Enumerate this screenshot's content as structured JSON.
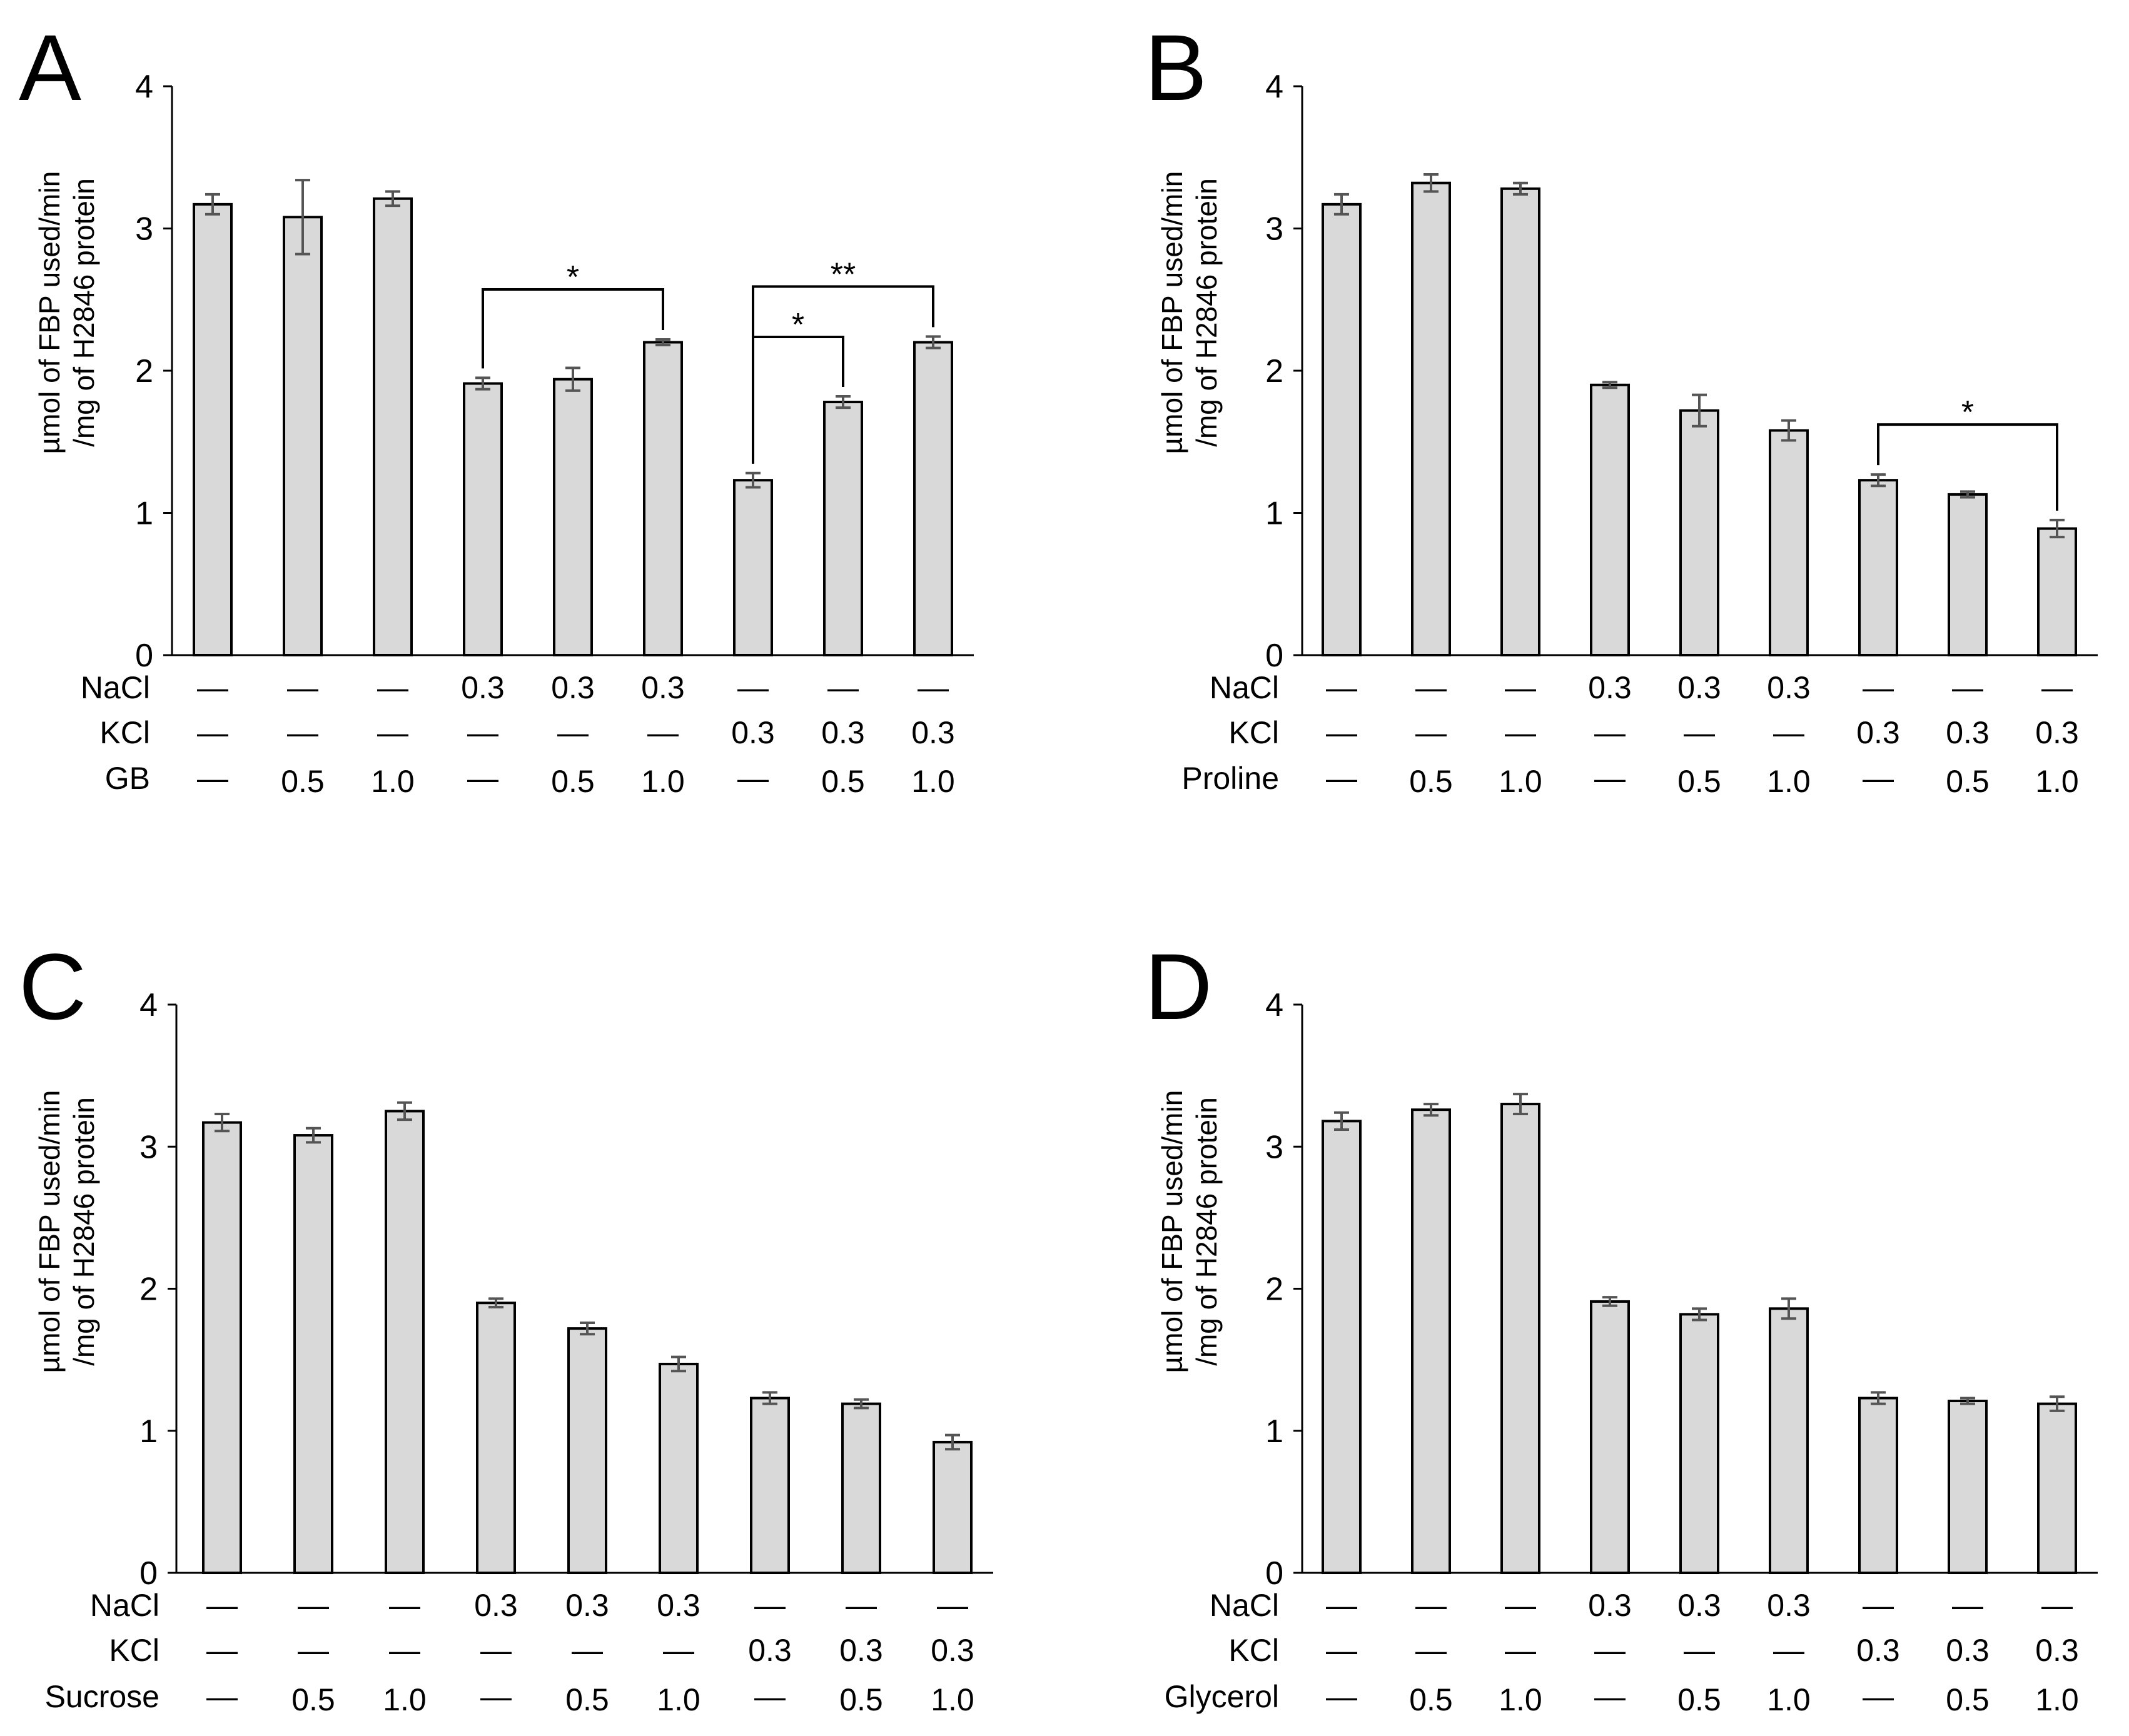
{
  "figure": {
    "panels": [
      {
        "letter": "A",
        "y_label_lines": [
          "µmol of FBP used/min",
          "/mg of H2846 protein"
        ]
      },
      {
        "letter": "B",
        "y_label_lines": [
          "µmol of FBP used/min",
          "/mg of H2846 protein"
        ]
      },
      {
        "letter": "C",
        "y_label_lines": [
          "µmol of FBP used/min",
          "/mg of H2846 protein"
        ]
      },
      {
        "letter": "D",
        "y_label_lines": [
          "µmol of FBP used/min",
          "/mg of H2846 protein"
        ]
      }
    ]
  },
  "chart_data": [
    {
      "type": "bar",
      "panel": "A",
      "ylabel": "µmol of FBP used/min /mg of H2846 protein",
      "ylim": [
        0,
        4
      ],
      "yticks": [
        0,
        1,
        2,
        3,
        4
      ],
      "values": [
        3.17,
        3.08,
        3.21,
        1.91,
        1.94,
        2.2,
        1.23,
        1.78,
        2.2
      ],
      "errors": [
        0.07,
        0.26,
        0.05,
        0.04,
        0.08,
        0.02,
        0.05,
        0.04,
        0.04
      ],
      "conditions": [
        {
          "name": "NaCl",
          "values": [
            "—",
            "—",
            "—",
            "0.3",
            "0.3",
            "0.3",
            "—",
            "—",
            "—"
          ]
        },
        {
          "name": "KCl",
          "values": [
            "—",
            "—",
            "—",
            "—",
            "—",
            "—",
            "0.3",
            "0.3",
            "0.3"
          ]
        },
        {
          "name": "GB",
          "values": [
            "—",
            "0.5",
            "1.0",
            "—",
            "0.5",
            "1.0",
            "—",
            "0.5",
            "1.0"
          ]
        }
      ],
      "significance": [
        {
          "from": 3,
          "to": 5,
          "label": "*"
        },
        {
          "from": 6,
          "to": 8,
          "label": "**"
        },
        {
          "from": 6,
          "to": 7,
          "label": "*"
        }
      ]
    },
    {
      "type": "bar",
      "panel": "B",
      "ylabel": "µmol of FBP used/min /mg of H2846 protein",
      "ylim": [
        0,
        4
      ],
      "yticks": [
        0,
        1,
        2,
        3,
        4
      ],
      "values": [
        3.17,
        3.32,
        3.28,
        1.9,
        1.72,
        1.58,
        1.23,
        1.13,
        0.89
      ],
      "errors": [
        0.07,
        0.06,
        0.04,
        0.02,
        0.11,
        0.07,
        0.04,
        0.02,
        0.06
      ],
      "conditions": [
        {
          "name": "NaCl",
          "values": [
            "—",
            "—",
            "—",
            "0.3",
            "0.3",
            "0.3",
            "—",
            "—",
            "—"
          ]
        },
        {
          "name": "KCl",
          "values": [
            "—",
            "—",
            "—",
            "—",
            "—",
            "—",
            "0.3",
            "0.3",
            "0.3"
          ]
        },
        {
          "name": "Proline",
          "values": [
            "—",
            "0.5",
            "1.0",
            "—",
            "0.5",
            "1.0",
            "—",
            "0.5",
            "1.0"
          ]
        }
      ],
      "significance": [
        {
          "from": 6,
          "to": 8,
          "label": "*"
        }
      ]
    },
    {
      "type": "bar",
      "panel": "C",
      "ylabel": "µmol of FBP used/min /mg of H2846 protein",
      "ylim": [
        0,
        4
      ],
      "yticks": [
        0,
        1,
        2,
        3,
        4
      ],
      "values": [
        3.17,
        3.08,
        3.25,
        1.9,
        1.72,
        1.47,
        1.23,
        1.19,
        0.92
      ],
      "errors": [
        0.06,
        0.05,
        0.06,
        0.03,
        0.04,
        0.05,
        0.04,
        0.03,
        0.05
      ],
      "conditions": [
        {
          "name": "NaCl",
          "values": [
            "—",
            "—",
            "—",
            "0.3",
            "0.3",
            "0.3",
            "—",
            "—",
            "—"
          ]
        },
        {
          "name": "KCl",
          "values": [
            "—",
            "—",
            "—",
            "—",
            "—",
            "—",
            "0.3",
            "0.3",
            "0.3"
          ]
        },
        {
          "name": "Sucrose",
          "values": [
            "—",
            "0.5",
            "1.0",
            "—",
            "0.5",
            "1.0",
            "—",
            "0.5",
            "1.0"
          ]
        }
      ],
      "significance": []
    },
    {
      "type": "bar",
      "panel": "D",
      "ylabel": "µmol of FBP used/min /mg of H2846 protein",
      "ylim": [
        0,
        4
      ],
      "yticks": [
        0,
        1,
        2,
        3,
        4
      ],
      "values": [
        3.18,
        3.26,
        3.3,
        1.91,
        1.82,
        1.86,
        1.23,
        1.21,
        1.19
      ],
      "errors": [
        0.06,
        0.04,
        0.07,
        0.03,
        0.04,
        0.07,
        0.04,
        0.02,
        0.05
      ],
      "conditions": [
        {
          "name": "NaCl",
          "values": [
            "—",
            "—",
            "—",
            "0.3",
            "0.3",
            "0.3",
            "—",
            "—",
            "—"
          ]
        },
        {
          "name": "KCl",
          "values": [
            "—",
            "—",
            "—",
            "—",
            "—",
            "—",
            "0.3",
            "0.3",
            "0.3"
          ]
        },
        {
          "name": "Glycerol",
          "values": [
            "—",
            "0.5",
            "1.0",
            "—",
            "0.5",
            "1.0",
            "—",
            "0.5",
            "1.0"
          ]
        }
      ],
      "significance": []
    }
  ]
}
